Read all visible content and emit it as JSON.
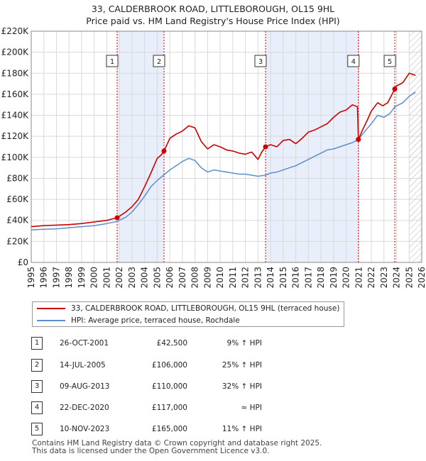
{
  "title_line1": "33, CALDERBROOK ROAD, LITTLEBOROUGH, OL15 9HL",
  "title_line2": "Price paid vs. HM Land Registry's House Price Index (HPI)",
  "chart_data": {
    "type": "line",
    "title": "33, CALDERBROOK ROAD, LITTLEBOROUGH, OL15 9HL — Price paid vs. HM Land Registry's House Price Index (HPI)",
    "xlabel": "",
    "ylabel": "",
    "xlim": [
      1995,
      2026
    ],
    "ylim": [
      0,
      220000
    ],
    "x_ticks": [
      1995,
      1996,
      1997,
      1998,
      1999,
      2000,
      2001,
      2002,
      2003,
      2004,
      2005,
      2006,
      2007,
      2008,
      2009,
      2010,
      2011,
      2012,
      2013,
      2014,
      2015,
      2016,
      2017,
      2018,
      2019,
      2020,
      2021,
      2022,
      2023,
      2024,
      2025,
      2026
    ],
    "y_ticks": [
      0,
      20000,
      40000,
      60000,
      80000,
      100000,
      120000,
      140000,
      160000,
      180000,
      200000,
      220000
    ],
    "y_tick_labels": [
      "£0",
      "£20K",
      "£40K",
      "£60K",
      "£80K",
      "£100K",
      "£120K",
      "£140K",
      "£160K",
      "£180K",
      "£200K",
      "£220K"
    ],
    "colors": {
      "property": "#cc0000",
      "hpi": "#5b8fd0",
      "shade": "#e8eefa",
      "grid": "#d9d9d9",
      "future_hatch": "#b0b0b0"
    },
    "series": [
      {
        "name": "33, CALDERBROOK ROAD, LITTLEBOROUGH, OL15 9HL (terraced house)",
        "color": "#cc0000",
        "x": [
          1995,
          1996,
          1997,
          1998,
          1999,
          2000,
          2001,
          2001.82,
          2002.5,
          2003,
          2003.5,
          2004,
          2004.5,
          2005,
          2005.3,
          2005.54,
          2006,
          2006.5,
          2007,
          2007.5,
          2008,
          2008.5,
          2009,
          2009.5,
          2010,
          2010.5,
          2011,
          2011.5,
          2012,
          2012.5,
          2013,
          2013.3,
          2013.6,
          2014,
          2014.5,
          2015,
          2015.5,
          2016,
          2016.5,
          2017,
          2017.5,
          2018,
          2018.5,
          2019,
          2019.5,
          2020,
          2020.5,
          2020.9,
          2020.97,
          2021.3,
          2021.7,
          2022,
          2022.5,
          2022.9,
          2023.3,
          2023.86,
          2024,
          2024.5,
          2025,
          2025.5
        ],
        "y": [
          34000,
          35000,
          35500,
          36000,
          37000,
          38500,
          40000,
          42500,
          48000,
          53000,
          60000,
          72000,
          85000,
          99000,
          102000,
          106000,
          118000,
          122000,
          125000,
          130000,
          128000,
          115000,
          108000,
          112000,
          110000,
          107000,
          106000,
          104000,
          103000,
          105000,
          98000,
          105000,
          110000,
          112000,
          110000,
          116000,
          117000,
          113000,
          118000,
          124000,
          126000,
          129000,
          132000,
          138000,
          143000,
          145000,
          150000,
          148000,
          117000,
          126000,
          136000,
          144000,
          152000,
          149000,
          152000,
          165000,
          168000,
          171000,
          180000,
          178000
        ]
      },
      {
        "name": "HPI: Average price, terraced house, Rochdale",
        "color": "#5b8fd0",
        "x": [
          1995,
          1996,
          1997,
          1998,
          1999,
          2000,
          2001,
          2001.82,
          2002.5,
          2003,
          2003.5,
          2004,
          2004.5,
          2005,
          2005.5,
          2006,
          2006.5,
          2007,
          2007.5,
          2008,
          2008.5,
          2009,
          2009.5,
          2010,
          2010.5,
          2011,
          2011.5,
          2012,
          2012.5,
          2013,
          2013.6,
          2014,
          2014.5,
          2015,
          2015.5,
          2016,
          2016.5,
          2017,
          2017.5,
          2018,
          2018.5,
          2019,
          2019.5,
          2020,
          2020.5,
          2020.97,
          2021.5,
          2022,
          2022.5,
          2023,
          2023.5,
          2023.86,
          2024.5,
          2025,
          2025.5
        ],
        "y": [
          31000,
          31500,
          32000,
          33000,
          34000,
          35000,
          37000,
          39000,
          43000,
          48000,
          55000,
          63000,
          72000,
          78000,
          83000,
          88000,
          92000,
          96000,
          99000,
          97000,
          90000,
          86000,
          88000,
          87000,
          86000,
          85000,
          84000,
          84000,
          83000,
          82000,
          83000,
          85000,
          86000,
          88000,
          90000,
          92000,
          95000,
          98000,
          101000,
          104000,
          107000,
          108000,
          110000,
          112000,
          114000,
          117000,
          125000,
          132000,
          140000,
          138000,
          142000,
          148000,
          152000,
          158000,
          162000
        ]
      }
    ],
    "shaded_periods": [
      [
        2001.82,
        2005.54
      ],
      [
        2013.6,
        2020.97
      ]
    ],
    "future_region": [
      2025.0,
      2026
    ],
    "sales": [
      {
        "id": "1",
        "date": "26-OCT-2001",
        "x": 2001.82,
        "price_value": 42500,
        "price": "£42,500",
        "hpi": "9% ↑ HPI"
      },
      {
        "id": "2",
        "date": "14-JUL-2005",
        "x": 2005.54,
        "price_value": 106000,
        "price": "£106,000",
        "hpi": "25% ↑ HPI"
      },
      {
        "id": "3",
        "date": "09-AUG-2013",
        "x": 2013.6,
        "price_value": 110000,
        "price": "£110,000",
        "hpi": "32% ↑ HPI"
      },
      {
        "id": "4",
        "date": "22-DEC-2020",
        "x": 2020.97,
        "price_value": 117000,
        "price": "£117,000",
        "hpi": "≈ HPI"
      },
      {
        "id": "5",
        "date": "10-NOV-2023",
        "x": 2023.86,
        "price_value": 165000,
        "price": "£165,000",
        "hpi": "11% ↑ HPI"
      }
    ]
  },
  "legend": {
    "property_label": "33, CALDERBROOK ROAD, LITTLEBOROUGH, OL15 9HL (terraced house)",
    "hpi_label": "HPI: Average price, terraced house, Rochdale"
  },
  "footer": {
    "line1": "Contains HM Land Registry data © Crown copyright and database right 2025.",
    "line2": "This data is licensed under the Open Government Licence v3.0."
  }
}
